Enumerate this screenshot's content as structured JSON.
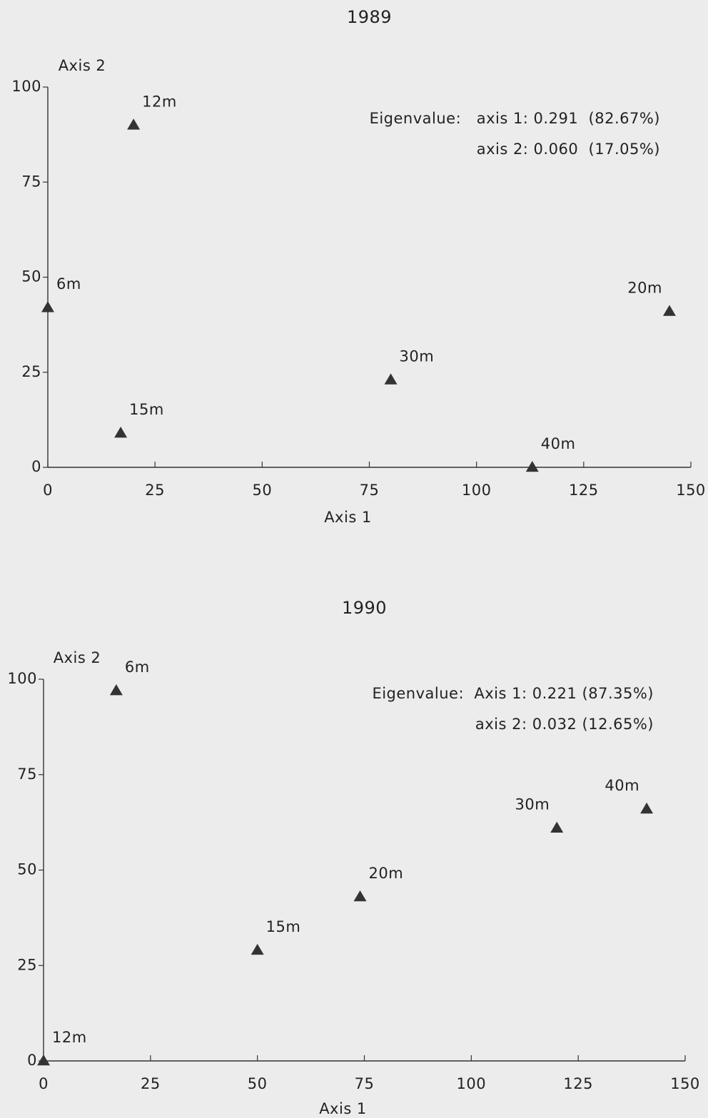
{
  "chart_data": [
    {
      "type": "scatter",
      "title": "1989",
      "xlabel": "Axis 1",
      "ylabel": "Axis 2",
      "x": [
        20,
        0,
        17,
        80,
        113,
        145
      ],
      "y": [
        90,
        42,
        9,
        23,
        0,
        41
      ],
      "point_labels": [
        "12m",
        "6m",
        "15m",
        "30m",
        "40m",
        "20m"
      ],
      "annotations": [
        "Eigenvalue:   axis 1: 0.291  (82.67%)",
        "axis 2: 0.060  (17.05%)"
      ],
      "marker": "triangle",
      "color": "#333333",
      "xlim": [
        0,
        150
      ],
      "ylim": [
        0,
        100
      ],
      "xticks": [
        0,
        25,
        50,
        75,
        100,
        125,
        150
      ],
      "yticks": [
        0,
        25,
        50,
        75,
        100
      ]
    },
    {
      "type": "scatter",
      "title": "1990",
      "xlabel": "Axis 1",
      "ylabel": "Axis 2",
      "x": [
        17,
        0,
        50,
        74,
        120,
        141
      ],
      "y": [
        97,
        0,
        29,
        43,
        61,
        66
      ],
      "point_labels": [
        "6m",
        "12m",
        "15m",
        "20m",
        "30m",
        "40m"
      ],
      "annotations": [
        "Eigenvalue:  Axis 1: 0.221 (87.35%)",
        "axis 2: 0.032 (12.65%)"
      ],
      "marker": "triangle",
      "color": "#333333",
      "xlim": [
        0,
        150
      ],
      "ylim": [
        0,
        100
      ],
      "xticks": [
        0,
        25,
        50,
        75,
        100,
        125,
        150
      ],
      "yticks": [
        0,
        25,
        50,
        75,
        100
      ]
    }
  ]
}
